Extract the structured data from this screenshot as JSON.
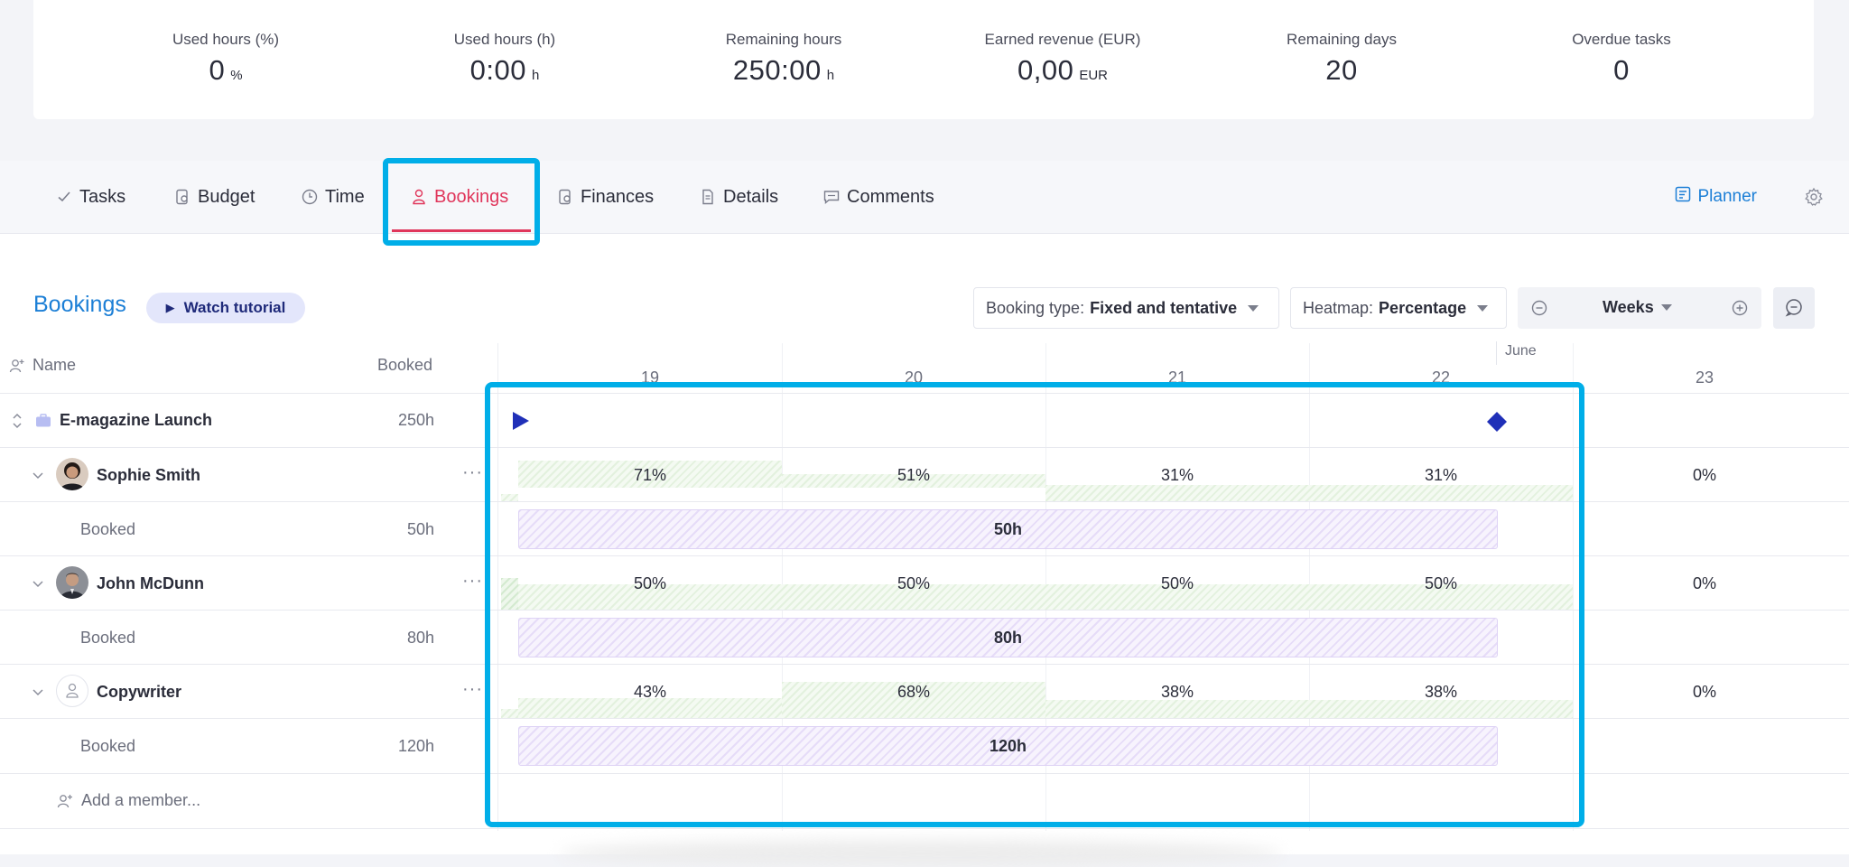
{
  "stats": [
    {
      "label": "Used hours (%)",
      "value": "0",
      "unit": "%"
    },
    {
      "label": "Used hours (h)",
      "value": "0:00",
      "unit": "h"
    },
    {
      "label": "Remaining hours",
      "value": "250:00",
      "unit": "h"
    },
    {
      "label": "Earned revenue (EUR)",
      "value": "0,00",
      "unit": "EUR"
    },
    {
      "label": "Remaining days",
      "value": "20",
      "unit": ""
    },
    {
      "label": "Overdue tasks",
      "value": "0",
      "unit": ""
    }
  ],
  "tabs": [
    {
      "label": "Tasks",
      "icon": "check-icon"
    },
    {
      "label": "Budget",
      "icon": "budget-icon"
    },
    {
      "label": "Time",
      "icon": "clock-icon"
    },
    {
      "label": "Bookings",
      "icon": "person-icon",
      "active": true
    },
    {
      "label": "Finances",
      "icon": "finances-icon"
    },
    {
      "label": "Details",
      "icon": "document-icon"
    },
    {
      "label": "Comments",
      "icon": "comment-icon"
    }
  ],
  "planner_label": "Planner",
  "section": {
    "title": "Bookings",
    "watch_tutorial": "Watch tutorial"
  },
  "controls": {
    "booking_type_label": "Booking type:",
    "booking_type_value": "Fixed and tentative",
    "heatmap_label": "Heatmap:",
    "heatmap_value": "Percentage",
    "zoom_value": "Weeks"
  },
  "table": {
    "col_name": "Name",
    "col_booked": "Booked",
    "project": {
      "name": "E-magazine Launch",
      "booked": "250h"
    },
    "members": [
      {
        "name": "Sophie Smith",
        "booked_label": "Booked",
        "booked": "50h",
        "bar": "50h",
        "heat": [
          "71%",
          "51%",
          "31%",
          "31%",
          "0%"
        ]
      },
      {
        "name": "John McDunn",
        "booked_label": "Booked",
        "booked": "80h",
        "bar": "80h",
        "heat": [
          "50%",
          "50%",
          "50%",
          "50%",
          "0%"
        ]
      },
      {
        "name": "Copywriter",
        "booked_label": "Booked",
        "booked": "120h",
        "bar": "120h",
        "heat": [
          "43%",
          "68%",
          "38%",
          "38%",
          "0%"
        ]
      }
    ],
    "add_member": "Add a member..."
  },
  "timeline": {
    "weeks": [
      "19",
      "20",
      "21",
      "22",
      "23"
    ],
    "month": "June"
  },
  "colors": {
    "accent_blue": "#1c7fd6",
    "active_tab": "#e0365b",
    "highlight": "#00aee8",
    "milestone": "#2030b8"
  }
}
